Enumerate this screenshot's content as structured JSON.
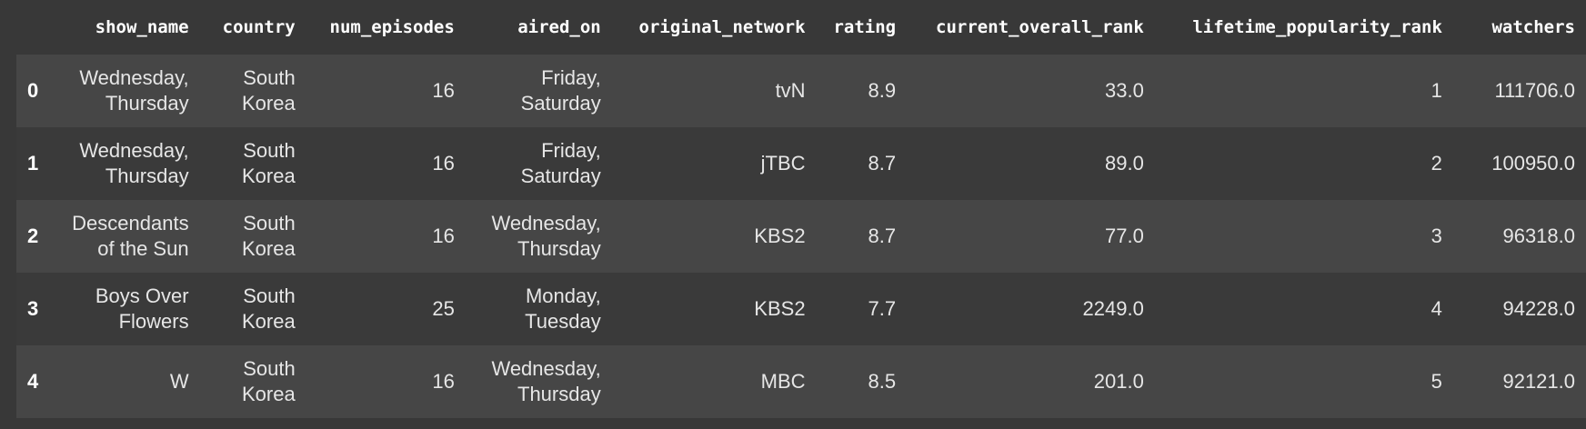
{
  "table": {
    "columns": [
      "show_name",
      "country",
      "num_episodes",
      "aired_on",
      "original_network",
      "rating",
      "current_overall_rank",
      "lifetime_popularity_rank",
      "watchers"
    ],
    "rows": [
      {
        "index": "0",
        "show_name": "Wednesday, Thursday",
        "country": "South Korea",
        "num_episodes": "16",
        "aired_on": "Friday, Saturday",
        "original_network": "tvN",
        "rating": "8.9",
        "current_overall_rank": "33.0",
        "lifetime_popularity_rank": "1",
        "watchers": "111706.0"
      },
      {
        "index": "1",
        "show_name": "Wednesday, Thursday",
        "country": "South Korea",
        "num_episodes": "16",
        "aired_on": "Friday, Saturday",
        "original_network": "jTBC",
        "rating": "8.7",
        "current_overall_rank": "89.0",
        "lifetime_popularity_rank": "2",
        "watchers": "100950.0"
      },
      {
        "index": "2",
        "show_name": "Descendants of the Sun",
        "country": "South Korea",
        "num_episodes": "16",
        "aired_on": "Wednesday, Thursday",
        "original_network": "KBS2",
        "rating": "8.7",
        "current_overall_rank": "77.0",
        "lifetime_popularity_rank": "3",
        "watchers": "96318.0"
      },
      {
        "index": "3",
        "show_name": "Boys Over Flowers",
        "country": "South Korea",
        "num_episodes": "25",
        "aired_on": "Monday, Tuesday",
        "original_network": "KBS2",
        "rating": "7.7",
        "current_overall_rank": "2249.0",
        "lifetime_popularity_rank": "4",
        "watchers": "94228.0"
      },
      {
        "index": "4",
        "show_name": "W",
        "country": "South Korea",
        "num_episodes": "16",
        "aired_on": "Wednesday, Thursday",
        "original_network": "MBC",
        "rating": "8.5",
        "current_overall_rank": "201.0",
        "lifetime_popularity_rank": "5",
        "watchers": "92121.0"
      }
    ]
  }
}
